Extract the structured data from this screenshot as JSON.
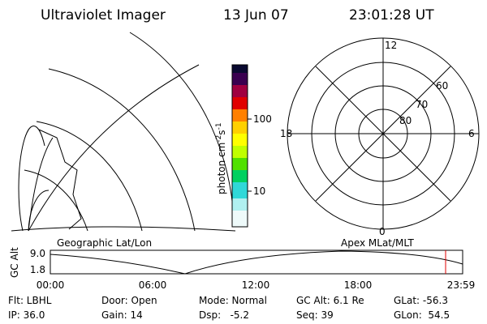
{
  "header": {
    "title": "Ultraviolet Imager",
    "date": "13 Jun 07",
    "time": "23:01:28 UT"
  },
  "colorbar": {
    "label": "photon cm",
    "exp1": "-2",
    "unit2": "s",
    "exp2": "-1",
    "ticks": [
      "100",
      "10"
    ]
  },
  "polar": {
    "mlt_labels": [
      "12",
      "18",
      "6",
      "0"
    ],
    "lat_labels": [
      "60",
      "70",
      "80"
    ]
  },
  "altitude": {
    "label": "GC Alt",
    "yticks": [
      "9.0",
      "1.8"
    ],
    "xticks": [
      "00:00",
      "06:00",
      "12:00",
      "18:00",
      "23:59"
    ],
    "left_title": "Geographic Lat/Lon",
    "right_title": "Apex MLat/MLT"
  },
  "status": {
    "rows": [
      [
        "Flt: LBHL",
        "Door: Open",
        "Mode: Normal",
        "GC Alt: 6.1 Re",
        "GLat: -56.3"
      ],
      [
        "IP: 36.0",
        "Gain: 14",
        "Dsp:   -5.2",
        "Seq: 39",
        "GLon:  54.5"
      ]
    ]
  }
}
